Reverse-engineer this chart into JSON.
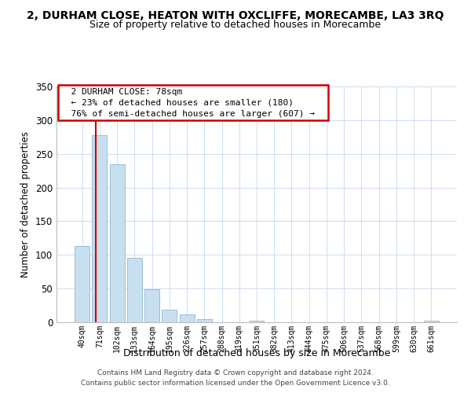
{
  "title": "2, DURHAM CLOSE, HEATON WITH OXCLIFFE, MORECAMBE, LA3 3RQ",
  "subtitle": "Size of property relative to detached houses in Morecambe",
  "xlabel": "Distribution of detached houses by size in Morecambe",
  "ylabel": "Number of detached properties",
  "bin_labels": [
    "40sqm",
    "71sqm",
    "102sqm",
    "133sqm",
    "164sqm",
    "195sqm",
    "226sqm",
    "257sqm",
    "288sqm",
    "319sqm",
    "351sqm",
    "382sqm",
    "413sqm",
    "444sqm",
    "475sqm",
    "506sqm",
    "537sqm",
    "568sqm",
    "599sqm",
    "630sqm",
    "661sqm"
  ],
  "bar_heights": [
    113,
    278,
    235,
    96,
    49,
    19,
    12,
    5,
    0,
    0,
    2,
    0,
    0,
    0,
    0,
    0,
    0,
    0,
    0,
    0,
    2
  ],
  "bar_color": "#c8dff0",
  "bar_edge_color": "#8ab8d8",
  "vline_color": "#cc0000",
  "vline_x_index": 1,
  "ylim": [
    0,
    350
  ],
  "yticks": [
    0,
    50,
    100,
    150,
    200,
    250,
    300,
    350
  ],
  "annotation_title": "2 DURHAM CLOSE: 78sqm",
  "annotation_line1": "← 23% of detached houses are smaller (180)",
  "annotation_line2": "76% of semi-detached houses are larger (607) →",
  "annotation_box_color": "#ffffff",
  "annotation_box_edge_color": "#cc0000",
  "footer_line1": "Contains HM Land Registry data © Crown copyright and database right 2024.",
  "footer_line2": "Contains public sector information licensed under the Open Government Licence v3.0.",
  "background_color": "#ffffff",
  "grid_color": "#ccddf0"
}
